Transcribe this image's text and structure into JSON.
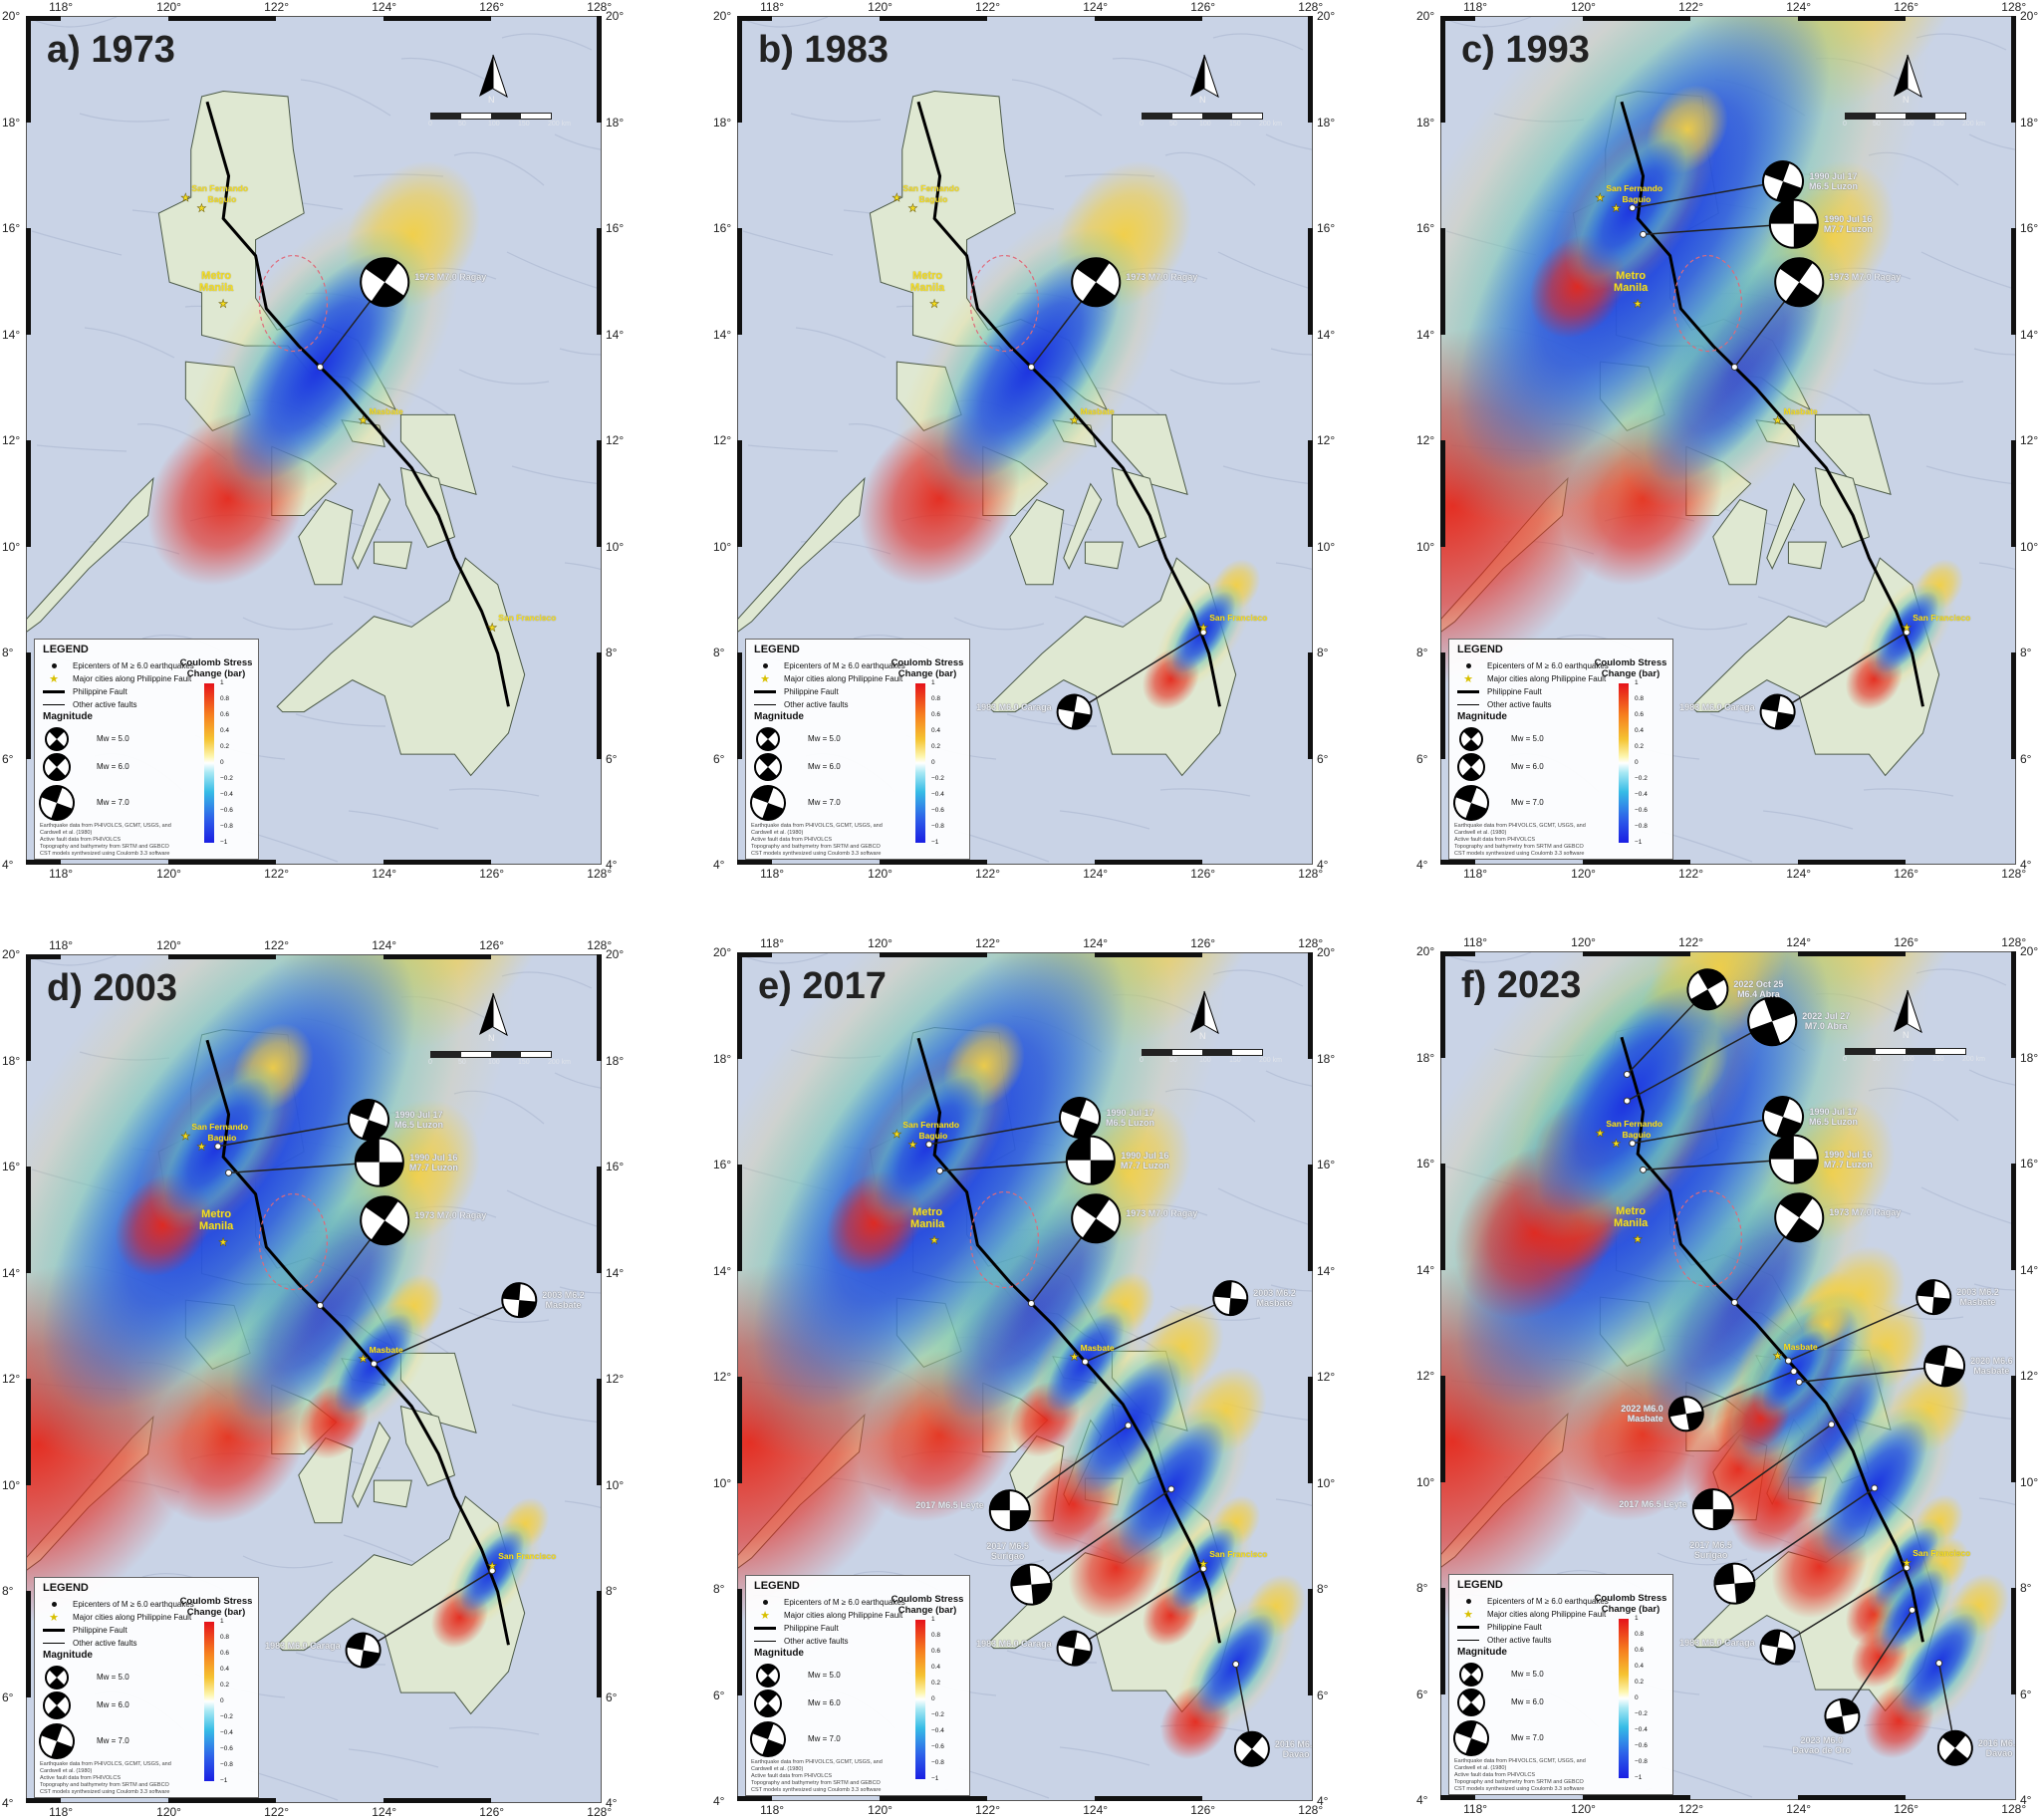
{
  "axes": {
    "lon_ticks": [
      "118°",
      "120°",
      "122°",
      "124°",
      "126°",
      "128°"
    ],
    "lat_ticks": [
      "20°",
      "18°",
      "16°",
      "14°",
      "12°",
      "10°",
      "8°",
      "6°",
      "4°"
    ]
  },
  "north_label": "N",
  "scale_bar": {
    "labels": [
      "0",
      "50",
      "100",
      "150",
      "200 km"
    ]
  },
  "legend": {
    "title": "LEGEND",
    "items": [
      "Epicenters of M ≥ 6.0 earthquakes",
      "Major cities along Philippine Fault",
      "Philippine Fault",
      "Other active faults"
    ],
    "magnitude_title": "Magnitude",
    "magnitudes": [
      "Mw = 5.0",
      "Mw = 6.0",
      "Mw = 7.0"
    ],
    "sources": [
      "Earthquake data from PHIVOLCS, GCMT, USGS, and Cardwell et al. (1980)",
      "Active fault data from PHIVOLCS",
      "Topography and bathymetry from SRTM and GEBCO",
      "CST models synthesized using Coulomb 3.3 software"
    ],
    "colorbar_title": "Coulomb Stress Change (bar)",
    "colorbar_ticks": [
      "1",
      "0.8",
      "0.6",
      "0.4",
      "0.2",
      "0",
      "−0.2",
      "−0.4",
      "−0.6",
      "−0.8",
      "−1"
    ],
    "colorbar_range": [
      -1,
      1
    ],
    "colors": {
      "positive": "#e5121b",
      "zero": "#ffffff",
      "negative": "#1a1ee3"
    }
  },
  "events": [
    {
      "id": "ragay",
      "label_l1": "1973 M7.0 Ragay",
      "label_l2": "",
      "year": 1973,
      "mw": 7.0,
      "lon": 122.8,
      "lat": 13.4
    },
    {
      "id": "caraga",
      "label_l1": "1983 M6.0 Caraga",
      "label_l2": "",
      "year": 1983,
      "mw": 6.0,
      "lon": 126.0,
      "lat": 8.4
    },
    {
      "id": "luzon16",
      "label_l1": "1990 Jul 16",
      "label_l2": "M7.7 Luzon",
      "year": 1990,
      "mw": 7.7,
      "lon": 121.1,
      "lat": 15.9
    },
    {
      "id": "luzon17",
      "label_l1": "1990 Jul 17",
      "label_l2": "M6.5 Luzon",
      "year": 1990,
      "mw": 6.5,
      "lon": 120.9,
      "lat": 16.4
    },
    {
      "id": "masbate03",
      "label_l1": "2003 M6.2",
      "label_l2": "Masbate",
      "year": 2003,
      "mw": 6.2,
      "lon": 123.8,
      "lat": 12.3
    },
    {
      "id": "leyte",
      "label_l1": "2017 M6.5 Leyte",
      "label_l2": "",
      "year": 2017,
      "mw": 6.5,
      "lon": 124.6,
      "lat": 11.1
    },
    {
      "id": "surigao",
      "label_l1": "2017 M6.5",
      "label_l2": "Surigao",
      "year": 2017,
      "mw": 6.5,
      "lon": 125.4,
      "lat": 9.9
    },
    {
      "id": "davao",
      "label_l1": "2016 M6.2",
      "label_l2": "Davao",
      "year": 2016,
      "mw": 6.2,
      "lon": 126.6,
      "lat": 6.6
    },
    {
      "id": "abra_oct",
      "label_l1": "2022 Oct 25",
      "label_l2": "M6.4 Abra",
      "year": 2022,
      "mw": 6.4,
      "lon": 120.8,
      "lat": 17.7
    },
    {
      "id": "abra_jul",
      "label_l1": "2022 Jul 27",
      "label_l2": "M7.0 Abra",
      "year": 2022,
      "mw": 7.0,
      "lon": 120.8,
      "lat": 17.2
    },
    {
      "id": "masbate20",
      "label_l1": "2020 M6.6",
      "label_l2": "Masbate",
      "year": 2020,
      "mw": 6.6,
      "lon": 124.0,
      "lat": 11.9
    },
    {
      "id": "masbate22",
      "label_l1": "2022 M6.0",
      "label_l2": "Masbate",
      "year": 2022,
      "mw": 6.0,
      "lon": 123.9,
      "lat": 12.1
    },
    {
      "id": "davaooro",
      "label_l1": "2023 M6.0",
      "label_l2": "Davao de Oro",
      "year": 2023,
      "mw": 6.0,
      "lon": 126.1,
      "lat": 7.6
    }
  ],
  "cities": [
    {
      "name": "Baguio",
      "lon": 120.6,
      "lat": 16.4,
      "big": false
    },
    {
      "name": "San Fernando",
      "lon": 120.3,
      "lat": 16.6,
      "big": false
    },
    {
      "name": "Metro Manila",
      "lon": 121.0,
      "lat": 14.6,
      "big": true
    },
    {
      "name": "Masbate",
      "lon": 123.6,
      "lat": 12.4,
      "big": false
    },
    {
      "name": "San Francisco",
      "lon": 126.0,
      "lat": 8.5,
      "big": false
    }
  ],
  "panels": [
    {
      "title": "a) 1973",
      "year": 1973,
      "events": [
        "ragay"
      ]
    },
    {
      "title": "b) 1983",
      "year": 1983,
      "events": [
        "ragay",
        "caraga"
      ]
    },
    {
      "title": "c) 1993",
      "year": 1993,
      "events": [
        "ragay",
        "caraga",
        "luzon16",
        "luzon17"
      ]
    },
    {
      "title": "d) 2003",
      "year": 2003,
      "events": [
        "ragay",
        "caraga",
        "luzon16",
        "luzon17",
        "masbate03"
      ]
    },
    {
      "title": "e) 2017",
      "year": 2017,
      "events": [
        "ragay",
        "caraga",
        "luzon16",
        "luzon17",
        "masbate03",
        "leyte",
        "surigao",
        "davao"
      ]
    },
    {
      "title": "f) 2023",
      "year": 2023,
      "events": [
        "ragay",
        "caraga",
        "luzon16",
        "luzon17",
        "masbate03",
        "leyte",
        "surigao",
        "davao",
        "abra_oct",
        "abra_jul",
        "masbate20",
        "masbate22",
        "davaooro"
      ]
    }
  ]
}
